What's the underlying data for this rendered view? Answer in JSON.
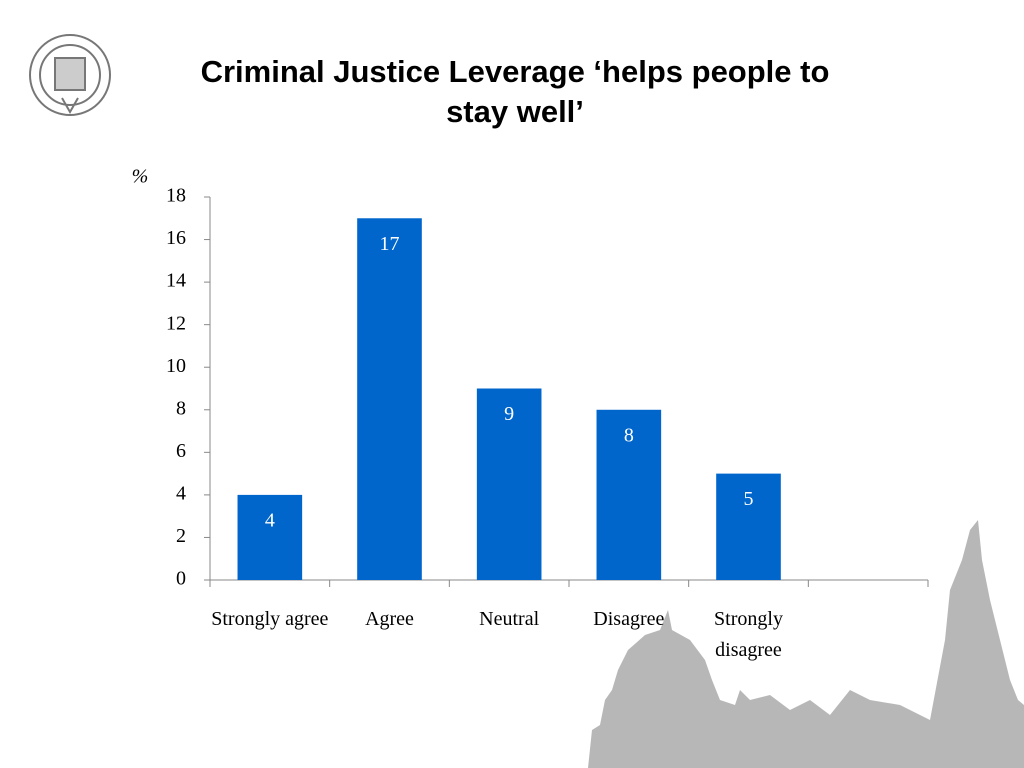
{
  "chart_data": {
    "type": "bar",
    "title": "Criminal Justice Leverage ‘helps people to stay well’",
    "y_label": "%",
    "categories": [
      "Strongly agree",
      "Agree",
      "Neutral",
      "Disagree",
      "Strongly disagree",
      null
    ],
    "values": [
      4,
      17,
      9,
      8,
      5,
      null
    ],
    "color": "#0066cc",
    "ylim": [
      0,
      18
    ],
    "yticks": [
      0,
      2,
      4,
      6,
      8,
      10,
      12,
      14,
      16,
      18
    ],
    "grid": false
  }
}
